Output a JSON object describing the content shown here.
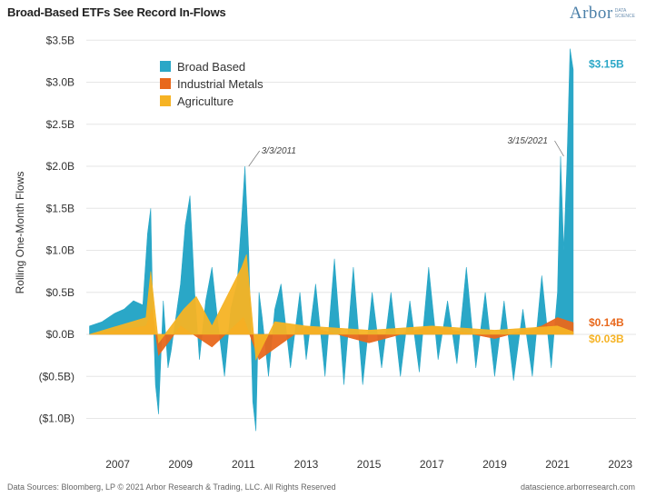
{
  "header": {
    "title": "Broad-Based ETFs See Record In-Flows",
    "logo_main": "Arbor",
    "logo_sub_1": "DATA",
    "logo_sub_2": "SCIENCE"
  },
  "footer": {
    "source": "Data Sources: Bloomberg, LP © 2021 Arbor Research & Trading, LLC. All Rights Reserved",
    "site": "datascience.arborresearch.com"
  },
  "chart_data": {
    "type": "area",
    "ylabel": "Rolling One-Month Flows",
    "y_ticks": [
      "($1.0B)",
      "($0.5B)",
      "$0.0B",
      "$0.5B",
      "$1.0B",
      "$1.5B",
      "$2.0B",
      "$2.5B",
      "$3.0B",
      "$3.5B"
    ],
    "y_tick_values": [
      -1.0,
      -0.5,
      0.0,
      0.5,
      1.0,
      1.5,
      2.0,
      2.5,
      3.0,
      3.5
    ],
    "x_ticks": [
      "2007",
      "2009",
      "2011",
      "2013",
      "2015",
      "2017",
      "2019",
      "2021",
      "2023"
    ],
    "x_tick_values": [
      2007,
      2009,
      2011,
      2013,
      2015,
      2017,
      2019,
      2021,
      2023
    ],
    "xlim": [
      2006,
      2023.5
    ],
    "ylim": [
      -1.2,
      3.5
    ],
    "grid": "horizontal",
    "legend_position": "top-left",
    "series": [
      {
        "name": "Broad Based",
        "color": "#2aa7c7",
        "x": [
          2006.1,
          2006.5,
          2006.9,
          2007.2,
          2007.5,
          2007.8,
          2007.95,
          2008.05,
          2008.1,
          2008.2,
          2008.3,
          2008.45,
          2008.6,
          2008.7,
          2008.85,
          2009.0,
          2009.15,
          2009.3,
          2009.45,
          2009.6,
          2009.8,
          2010.0,
          2010.2,
          2010.4,
          2010.6,
          2010.8,
          2010.95,
          2011.05,
          2011.17,
          2011.3,
          2011.4,
          2011.5,
          2011.6,
          2011.8,
          2012.0,
          2012.2,
          2012.5,
          2012.8,
          2013.0,
          2013.3,
          2013.6,
          2013.9,
          2014.2,
          2014.5,
          2014.8,
          2015.1,
          2015.4,
          2015.7,
          2016.0,
          2016.3,
          2016.6,
          2016.9,
          2017.2,
          2017.5,
          2017.8,
          2018.1,
          2018.4,
          2018.7,
          2019.0,
          2019.3,
          2019.6,
          2019.9,
          2020.2,
          2020.5,
          2020.8,
          2021.0,
          2021.1,
          2021.2,
          2021.3,
          2021.4,
          2021.5
        ],
        "values": [
          0.1,
          0.15,
          0.25,
          0.3,
          0.4,
          0.35,
          1.2,
          1.5,
          0.6,
          -0.6,
          -0.95,
          0.4,
          -0.4,
          -0.2,
          0.2,
          0.6,
          1.3,
          1.65,
          0.5,
          -0.3,
          0.4,
          0.8,
          0.1,
          -0.5,
          0.3,
          0.6,
          1.4,
          2.0,
          1.0,
          -0.8,
          -1.15,
          0.5,
          0.2,
          -0.5,
          0.3,
          0.6,
          -0.4,
          0.5,
          -0.3,
          0.6,
          -0.5,
          0.9,
          -0.6,
          0.8,
          -0.6,
          0.5,
          -0.4,
          0.5,
          -0.5,
          0.4,
          -0.45,
          0.8,
          -0.3,
          0.4,
          -0.35,
          0.8,
          -0.4,
          0.5,
          -0.5,
          0.4,
          -0.55,
          0.3,
          -0.5,
          0.7,
          -0.4,
          0.5,
          2.12,
          1.0,
          2.0,
          3.4,
          3.15
        ]
      },
      {
        "name": "Industrial Metals",
        "color": "#e8681c",
        "x": [
          2006.1,
          2007.9,
          2008.1,
          2008.3,
          2009.0,
          2010.0,
          2011.0,
          2011.5,
          2013.0,
          2015.0,
          2017.0,
          2019.0,
          2020.5,
          2021.0,
          2021.5
        ],
        "values": [
          0.0,
          0.1,
          0.3,
          -0.25,
          0.1,
          -0.15,
          0.2,
          -0.3,
          0.1,
          -0.1,
          0.1,
          -0.05,
          0.1,
          0.2,
          0.14
        ]
      },
      {
        "name": "Agriculture",
        "color": "#f6b324",
        "x": [
          2006.1,
          2007.9,
          2008.05,
          2008.3,
          2009.1,
          2009.5,
          2010.0,
          2010.95,
          2011.1,
          2011.4,
          2012.0,
          2013.0,
          2015.0,
          2017.0,
          2019.0,
          2021.0,
          2021.5
        ],
        "values": [
          0.0,
          0.2,
          0.75,
          -0.1,
          0.3,
          0.45,
          0.1,
          0.8,
          0.95,
          -0.3,
          0.15,
          0.1,
          0.05,
          0.1,
          0.05,
          0.1,
          0.03
        ]
      }
    ],
    "annotations": [
      {
        "text": "3/3/2011",
        "x": 2011.17,
        "y": 2.0
      },
      {
        "text": "3/15/2021",
        "x": 2021.2,
        "y": 2.12
      }
    ],
    "end_labels": [
      {
        "text": "$3.15B",
        "series": "Broad Based"
      },
      {
        "text": "$0.14B",
        "series": "Industrial Metals"
      },
      {
        "text": "$0.03B",
        "series": "Agriculture"
      }
    ]
  }
}
